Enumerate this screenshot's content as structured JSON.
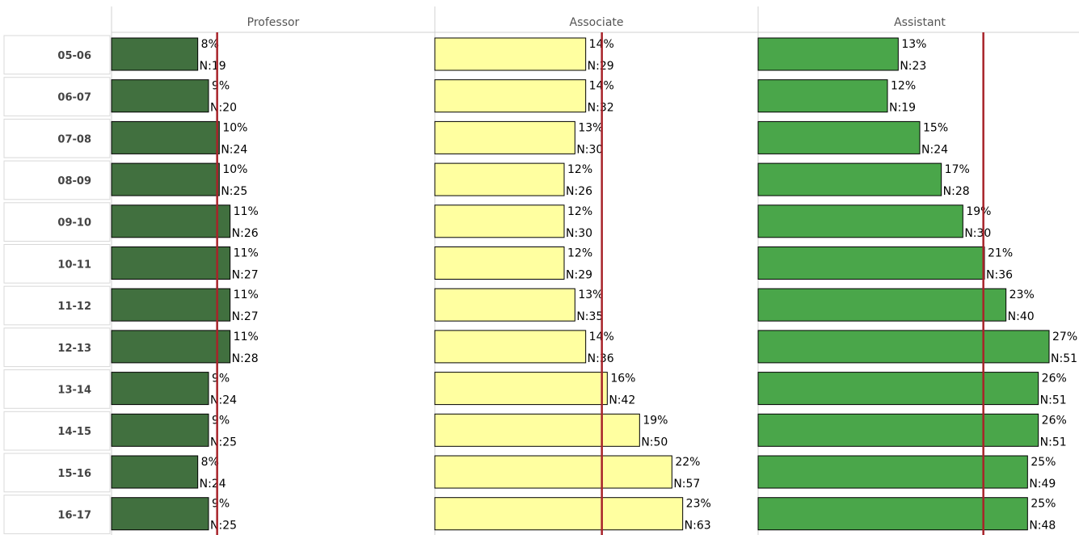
{
  "chart_data": {
    "type": "bar",
    "orientation": "horizontal",
    "categories": [
      "05-06",
      "06-07",
      "07-08",
      "08-09",
      "09-10",
      "10-11",
      "11-12",
      "12-13",
      "13-14",
      "14-15",
      "15-16",
      "16-17"
    ],
    "xlim": [
      0,
      30
    ],
    "reference_color": "#a8232a",
    "series": [
      {
        "name": "Professor",
        "color": "#41703f",
        "reference": 9.8,
        "values": [
          8,
          9,
          10,
          10,
          11,
          11,
          11,
          11,
          9,
          9,
          8,
          9
        ],
        "value_labels": [
          "8%",
          "9%",
          "10%",
          "10%",
          "11%",
          "11%",
          "11%",
          "11%",
          "9%",
          "9%",
          "8%",
          "9%"
        ],
        "n_labels": [
          "N:19",
          "N:20",
          "N:24",
          "N:25",
          "N:26",
          "N:27",
          "N:27",
          "N:28",
          "N:24",
          "N:25",
          "N:24",
          "N:25"
        ]
      },
      {
        "name": "Associate",
        "color": "#ffffa0",
        "reference": 15.5,
        "values": [
          14,
          14,
          13,
          12,
          12,
          12,
          13,
          14,
          16,
          19,
          22,
          23
        ],
        "value_labels": [
          "14%",
          "14%",
          "13%",
          "12%",
          "12%",
          "12%",
          "13%",
          "14%",
          "16%",
          "19%",
          "22%",
          "23%"
        ],
        "n_labels": [
          "N:29",
          "N:32",
          "N:30",
          "N:26",
          "N:30",
          "N:29",
          "N:35",
          "N:36",
          "N:42",
          "N:50",
          "N:57",
          "N:63"
        ]
      },
      {
        "name": "Assistant",
        "color": "#4aa64a",
        "reference": 20.9,
        "values": [
          13,
          12,
          15,
          17,
          19,
          21,
          23,
          27,
          26,
          26,
          25,
          25
        ],
        "value_labels": [
          "13%",
          "12%",
          "15%",
          "17%",
          "19%",
          "21%",
          "23%",
          "27%",
          "26%",
          "26%",
          "25%",
          "25%"
        ],
        "n_labels": [
          "N:23",
          "N:19",
          "N:24",
          "N:28",
          "N:30",
          "N:36",
          "N:40",
          "N:51",
          "N:51",
          "N:51",
          "N:49",
          "N:48"
        ]
      }
    ]
  }
}
